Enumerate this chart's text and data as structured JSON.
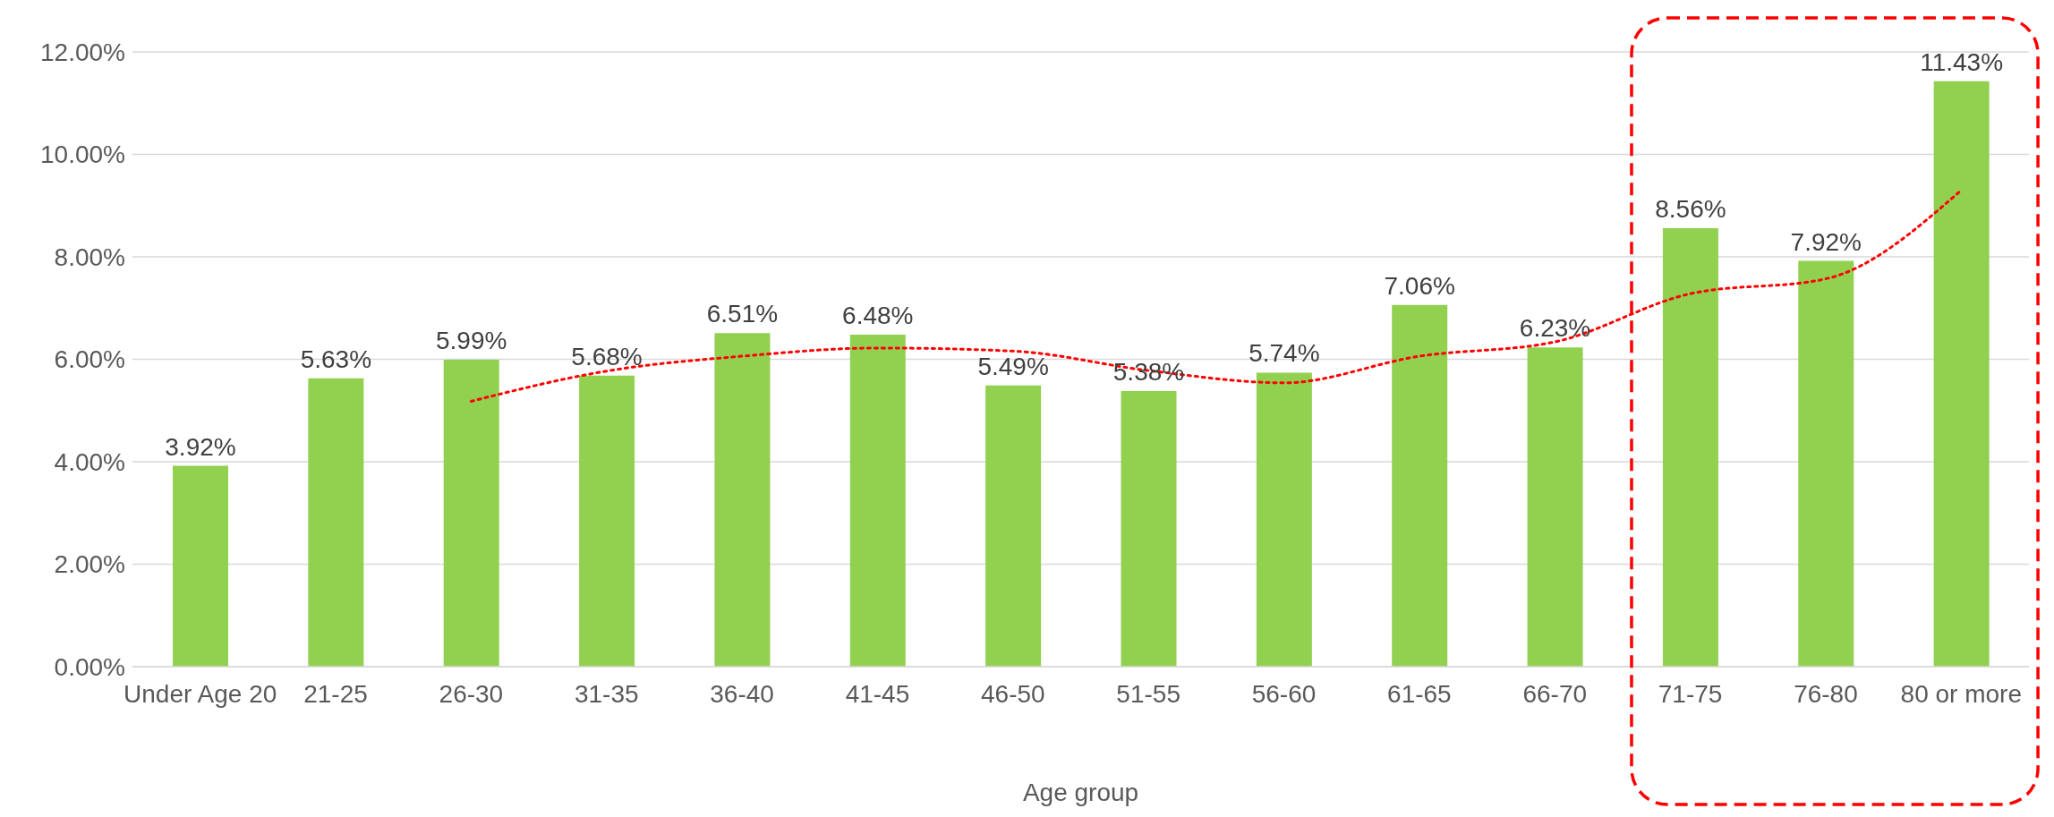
{
  "chart_data": {
    "type": "bar",
    "xlabel": "Age group",
    "categories": [
      "Under Age 20",
      "21-25",
      "26-30",
      "31-35",
      "36-40",
      "41-45",
      "46-50",
      "51-55",
      "56-60",
      "61-65",
      "66-70",
      "71-75",
      "76-80",
      "80 or more"
    ],
    "series": [
      {
        "color": "#92d050",
        "values": [
          3.92,
          5.63,
          5.99,
          5.68,
          6.51,
          6.48,
          5.49,
          5.38,
          5.74,
          7.06,
          6.23,
          8.56,
          7.92,
          11.43
        ],
        "value_labels": [
          "3.92%",
          "5.63%",
          "5.99%",
          "5.68%",
          "6.51%",
          "6.48%",
          "5.49%",
          "5.38%",
          "5.74%",
          "7.06%",
          "6.23%",
          "8.56%",
          "7.92%",
          "11.43%"
        ]
      },
      {
        "type": "line",
        "color": "#ff0000",
        "line_style": "dotted",
        "marker": "none",
        "x": [
          "26-30",
          "31-35",
          "36-40",
          "41-45",
          "46-50",
          "51-55",
          "56-60",
          "61-65",
          "66-70",
          "71-75",
          "76-80",
          "80 or more"
        ],
        "values": [
          5.18,
          5.77,
          6.06,
          6.22,
          6.16,
          5.78,
          5.54,
          6.06,
          6.34,
          7.28,
          7.57,
          9.3
        ]
      }
    ],
    "ylim": [
      0,
      12
    ],
    "yticks": [
      {
        "value": 0,
        "label": "0.00%"
      },
      {
        "value": 2,
        "label": "2.00%"
      },
      {
        "value": 4,
        "label": "4.00%"
      },
      {
        "value": 6,
        "label": "6.00%"
      },
      {
        "value": 8,
        "label": "8.00%"
      },
      {
        "value": 10,
        "label": "10.00%"
      },
      {
        "value": 12,
        "label": "12.00%"
      }
    ],
    "grid": "y"
  }
}
